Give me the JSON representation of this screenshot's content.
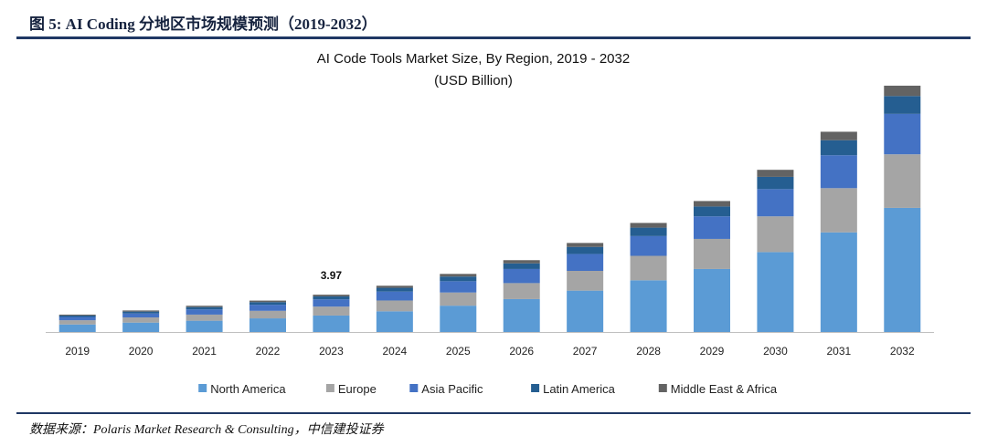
{
  "figure": {
    "header": "图 5: AI Coding 分地区市场规模预测（2019-2032）",
    "source": "数据来源：Polaris Market Research & Consulting，中信建投证券"
  },
  "chart_data": {
    "type": "bar",
    "stacked": true,
    "title": "AI Code Tools Market Size, By Region, 2019 - 2032",
    "subtitle": "(USD Billion)",
    "xlabel": "",
    "ylabel": "",
    "ylim": [
      0,
      26
    ],
    "grid": false,
    "legend_position": "bottom",
    "categories": [
      "2019",
      "2020",
      "2021",
      "2022",
      "2023",
      "2024",
      "2025",
      "2026",
      "2027",
      "2028",
      "2029",
      "2030",
      "2031",
      "2032"
    ],
    "series": [
      {
        "name": "North America",
        "color": "#5b9bd5",
        "values": [
          0.8,
          1.0,
          1.2,
          1.45,
          1.75,
          2.2,
          2.8,
          3.5,
          4.4,
          5.5,
          6.7,
          8.5,
          10.6,
          13.2
        ]
      },
      {
        "name": "Europe",
        "color": "#a5a5a5",
        "values": [
          0.45,
          0.55,
          0.65,
          0.8,
          0.95,
          1.15,
          1.4,
          1.7,
          2.1,
          2.6,
          3.2,
          3.8,
          4.7,
          5.7
        ]
      },
      {
        "name": "Asia Pacific",
        "color": "#4472c4",
        "values": [
          0.35,
          0.42,
          0.55,
          0.65,
          0.77,
          0.95,
          1.2,
          1.5,
          1.8,
          2.1,
          2.4,
          2.9,
          3.5,
          4.3
        ]
      },
      {
        "name": "Latin America",
        "color": "#255e91",
        "values": [
          0.15,
          0.2,
          0.25,
          0.28,
          0.32,
          0.4,
          0.5,
          0.6,
          0.75,
          0.9,
          1.05,
          1.3,
          1.6,
          1.9
        ]
      },
      {
        "name": "Middle East & Africa",
        "color": "#636363",
        "values": [
          0.1,
          0.12,
          0.14,
          0.16,
          0.18,
          0.22,
          0.28,
          0.34,
          0.42,
          0.5,
          0.58,
          0.75,
          0.9,
          1.1
        ]
      }
    ],
    "annotations": [
      {
        "category": "2023",
        "text": "3.97"
      }
    ]
  }
}
